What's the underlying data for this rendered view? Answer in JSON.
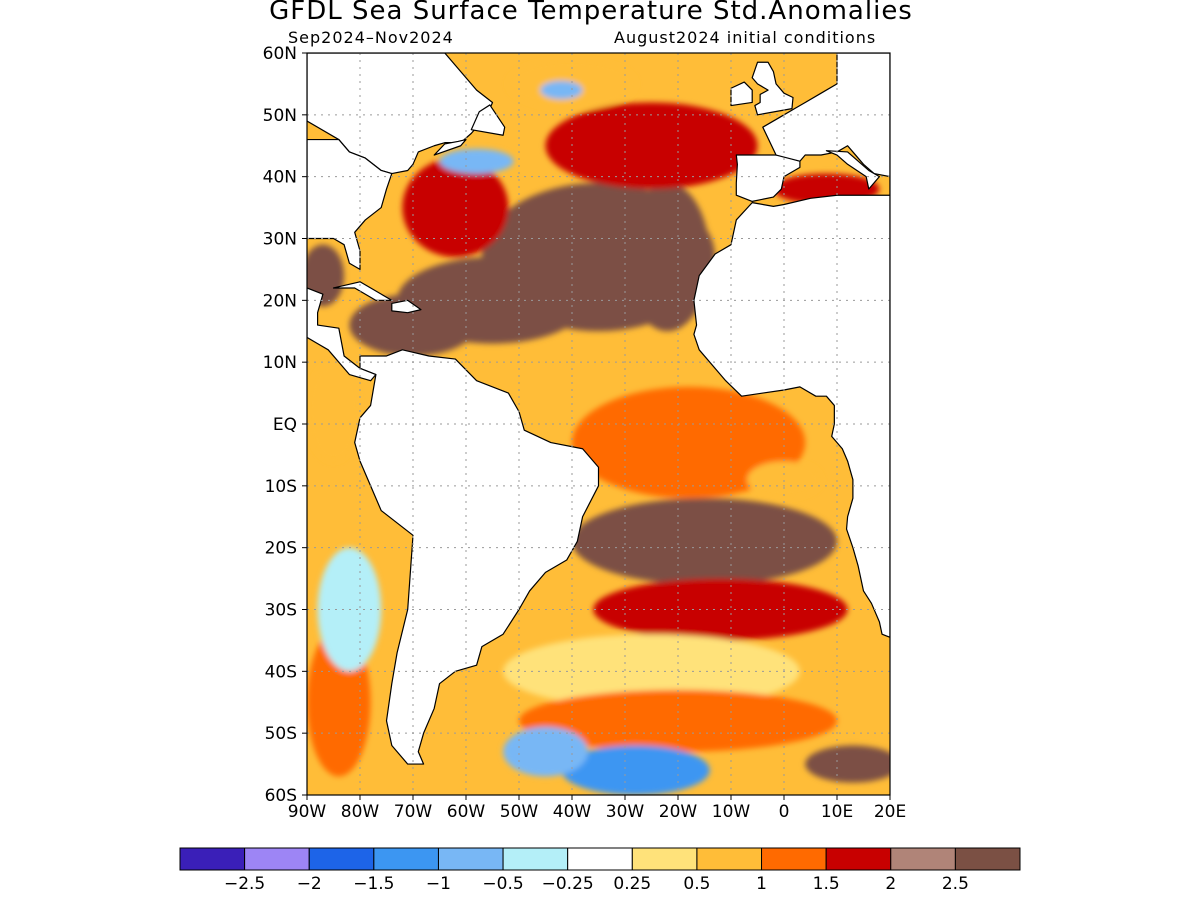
{
  "title": "GFDL Sea Surface Temperature Std.Anomalies",
  "subtitle_left": "Sep2024–Nov2024",
  "subtitle_right": "August2024 initial conditions",
  "map": {
    "lon_range": [
      -90,
      20
    ],
    "lat_range": [
      -60,
      60
    ],
    "lat_labels": [
      "60N",
      "50N",
      "40N",
      "30N",
      "20N",
      "10N",
      "EQ",
      "10S",
      "20S",
      "30S",
      "40S",
      "50S",
      "60S"
    ],
    "lon_labels": [
      "90W",
      "80W",
      "70W",
      "60W",
      "50W",
      "40W",
      "30W",
      "20W",
      "10W",
      "0",
      "10E",
      "20E"
    ],
    "land_color": "#ffffff",
    "coastline_color": "#000000",
    "gridline_style": "dotted gray",
    "anomaly_regions": [
      {
        "name": "north-atlantic-core",
        "lon": -35,
        "lat": 27,
        "rx": 22,
        "ry": 12,
        "value": 2.7
      },
      {
        "name": "subtropical-west",
        "lon": -55,
        "lat": 20,
        "rx": 18,
        "ry": 7,
        "value": 2.6
      },
      {
        "name": "caribbean",
        "lon": -70,
        "lat": 16,
        "rx": 12,
        "ry": 5,
        "value": 2.6
      },
      {
        "name": "gulf-of-mexico",
        "lon": -87,
        "lat": 24,
        "rx": 4,
        "ry": 5,
        "value": 2.6
      },
      {
        "name": "east-subtropical",
        "lon": -22,
        "lat": 27,
        "rx": 8,
        "ry": 12,
        "value": 2.7
      },
      {
        "name": "gulf-stream-region",
        "lon": -62,
        "lat": 35,
        "rx": 10,
        "ry": 8,
        "value": 1.8
      },
      {
        "name": "ne-atlantic",
        "lon": -25,
        "lat": 45,
        "rx": 20,
        "ry": 7,
        "value": 1.6
      },
      {
        "name": "labrador-warm",
        "lon": -40,
        "lat": 55,
        "rx": 12,
        "ry": 4,
        "value": 0.9
      },
      {
        "name": "labrador-cool",
        "lon": -42,
        "lat": 54,
        "rx": 4,
        "ry": 1.5,
        "value": -0.6
      },
      {
        "name": "newfoundland-cool",
        "lon": -58,
        "lat": 42.5,
        "rx": 7,
        "ry": 2,
        "value": -0.6
      },
      {
        "name": "equatorial-atlantic",
        "lon": -18,
        "lat": -3,
        "rx": 22,
        "ry": 9,
        "value": 1.4
      },
      {
        "name": "gulf-of-guinea-warm",
        "lon": 0,
        "lat": -9,
        "rx": 7,
        "ry": 3,
        "value": 0.6
      },
      {
        "name": "south-atlantic-core",
        "lon": -15,
        "lat": -19,
        "rx": 25,
        "ry": 7,
        "value": 2.7
      },
      {
        "name": "south-atlantic-band",
        "lon": -12,
        "lat": -30,
        "rx": 24,
        "ry": 5,
        "value": 2.0
      },
      {
        "name": "south-atlantic-mid",
        "lon": -25,
        "lat": -40,
        "rx": 28,
        "ry": 6,
        "value": 0.4
      },
      {
        "name": "southern-ocean-warm",
        "lon": -20,
        "lat": -48,
        "rx": 30,
        "ry": 5,
        "value": 1.3
      },
      {
        "name": "southern-ocean-cool",
        "lon": -28,
        "lat": -56,
        "rx": 14,
        "ry": 4,
        "value": -1.4
      },
      {
        "name": "drake-cool",
        "lon": -45,
        "lat": -53,
        "rx": 8,
        "ry": 4,
        "value": -0.6
      },
      {
        "name": "sw-africa-core",
        "lon": 13,
        "lat": -55,
        "rx": 9,
        "ry": 3,
        "value": 2.7
      },
      {
        "name": "pacific-sw-warm",
        "lon": -84,
        "lat": -45,
        "rx": 6,
        "ry": 12,
        "value": 1.1
      },
      {
        "name": "pacific-sw-cool",
        "lon": -82,
        "lat": -30,
        "rx": 6,
        "ry": 10,
        "value": -0.4
      },
      {
        "name": "pacific-east-warm",
        "lon": -85,
        "lat": 2,
        "rx": 5,
        "ry": 8,
        "value": 0.6
      },
      {
        "name": "mediterranean",
        "lon": 8,
        "lat": 38,
        "rx": 10,
        "ry": 2.5,
        "value": 1.7
      }
    ]
  },
  "colorbar": {
    "colors": [
      "#3a1fb8",
      "#9d85f5",
      "#1d64e8",
      "#3c96f2",
      "#78b7f5",
      "#b4eff8",
      "#ffffff",
      "#ffe27a",
      "#ffbd38",
      "#ff6a00",
      "#c80000",
      "#b08478",
      "#7b5044"
    ],
    "tick_labels": [
      "−2.5",
      "−2",
      "−1.5",
      "−1",
      "−0.5",
      "−0.25",
      "0.25",
      "0.5",
      "1",
      "1.5",
      "2",
      "2.5"
    ],
    "boundaries": [
      -2.5,
      -2,
      -1.5,
      -1,
      -0.5,
      -0.25,
      0.25,
      0.5,
      1,
      1.5,
      2,
      2.5
    ]
  }
}
